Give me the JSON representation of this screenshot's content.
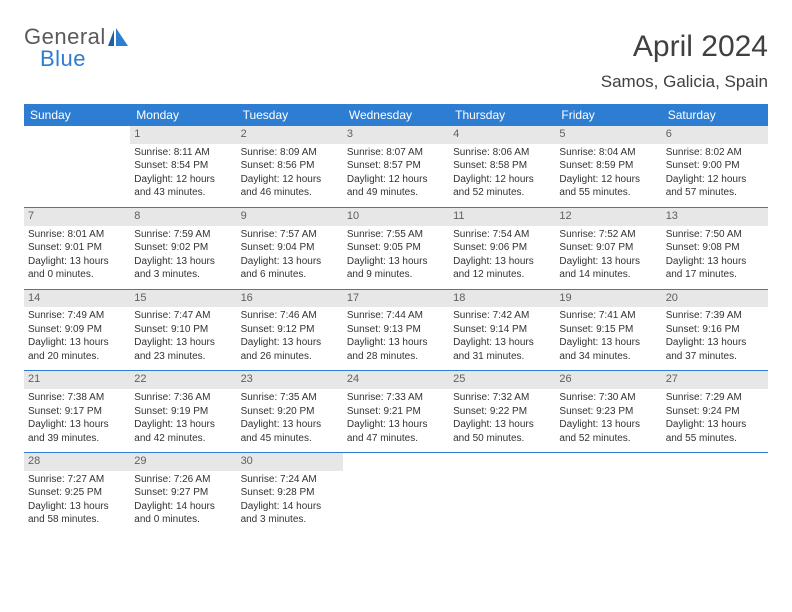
{
  "logo": {
    "main": "General",
    "sub": "Blue"
  },
  "title": "April 2024",
  "location": "Samos, Galicia, Spain",
  "colors": {
    "header_bg": "#2d7dd2",
    "header_text": "#ffffff",
    "daynum_bg": "#e7e7e7",
    "daynum_text": "#606060",
    "body_text": "#333333",
    "week_border": "#2d7dd2",
    "logo_main": "#5a5a5a",
    "logo_sub": "#2d7dd2",
    "title_color": "#404040",
    "page_bg": "#ffffff"
  },
  "day_headers": [
    "Sunday",
    "Monday",
    "Tuesday",
    "Wednesday",
    "Thursday",
    "Friday",
    "Saturday"
  ],
  "weeks": [
    [
      null,
      {
        "d": "1",
        "sr": "Sunrise: 8:11 AM",
        "ss": "Sunset: 8:54 PM",
        "dl1": "Daylight: 12 hours",
        "dl2": "and 43 minutes."
      },
      {
        "d": "2",
        "sr": "Sunrise: 8:09 AM",
        "ss": "Sunset: 8:56 PM",
        "dl1": "Daylight: 12 hours",
        "dl2": "and 46 minutes."
      },
      {
        "d": "3",
        "sr": "Sunrise: 8:07 AM",
        "ss": "Sunset: 8:57 PM",
        "dl1": "Daylight: 12 hours",
        "dl2": "and 49 minutes."
      },
      {
        "d": "4",
        "sr": "Sunrise: 8:06 AM",
        "ss": "Sunset: 8:58 PM",
        "dl1": "Daylight: 12 hours",
        "dl2": "and 52 minutes."
      },
      {
        "d": "5",
        "sr": "Sunrise: 8:04 AM",
        "ss": "Sunset: 8:59 PM",
        "dl1": "Daylight: 12 hours",
        "dl2": "and 55 minutes."
      },
      {
        "d": "6",
        "sr": "Sunrise: 8:02 AM",
        "ss": "Sunset: 9:00 PM",
        "dl1": "Daylight: 12 hours",
        "dl2": "and 57 minutes."
      }
    ],
    [
      {
        "d": "7",
        "sr": "Sunrise: 8:01 AM",
        "ss": "Sunset: 9:01 PM",
        "dl1": "Daylight: 13 hours",
        "dl2": "and 0 minutes."
      },
      {
        "d": "8",
        "sr": "Sunrise: 7:59 AM",
        "ss": "Sunset: 9:02 PM",
        "dl1": "Daylight: 13 hours",
        "dl2": "and 3 minutes."
      },
      {
        "d": "9",
        "sr": "Sunrise: 7:57 AM",
        "ss": "Sunset: 9:04 PM",
        "dl1": "Daylight: 13 hours",
        "dl2": "and 6 minutes."
      },
      {
        "d": "10",
        "sr": "Sunrise: 7:55 AM",
        "ss": "Sunset: 9:05 PM",
        "dl1": "Daylight: 13 hours",
        "dl2": "and 9 minutes."
      },
      {
        "d": "11",
        "sr": "Sunrise: 7:54 AM",
        "ss": "Sunset: 9:06 PM",
        "dl1": "Daylight: 13 hours",
        "dl2": "and 12 minutes."
      },
      {
        "d": "12",
        "sr": "Sunrise: 7:52 AM",
        "ss": "Sunset: 9:07 PM",
        "dl1": "Daylight: 13 hours",
        "dl2": "and 14 minutes."
      },
      {
        "d": "13",
        "sr": "Sunrise: 7:50 AM",
        "ss": "Sunset: 9:08 PM",
        "dl1": "Daylight: 13 hours",
        "dl2": "and 17 minutes."
      }
    ],
    [
      {
        "d": "14",
        "sr": "Sunrise: 7:49 AM",
        "ss": "Sunset: 9:09 PM",
        "dl1": "Daylight: 13 hours",
        "dl2": "and 20 minutes."
      },
      {
        "d": "15",
        "sr": "Sunrise: 7:47 AM",
        "ss": "Sunset: 9:10 PM",
        "dl1": "Daylight: 13 hours",
        "dl2": "and 23 minutes."
      },
      {
        "d": "16",
        "sr": "Sunrise: 7:46 AM",
        "ss": "Sunset: 9:12 PM",
        "dl1": "Daylight: 13 hours",
        "dl2": "and 26 minutes."
      },
      {
        "d": "17",
        "sr": "Sunrise: 7:44 AM",
        "ss": "Sunset: 9:13 PM",
        "dl1": "Daylight: 13 hours",
        "dl2": "and 28 minutes."
      },
      {
        "d": "18",
        "sr": "Sunrise: 7:42 AM",
        "ss": "Sunset: 9:14 PM",
        "dl1": "Daylight: 13 hours",
        "dl2": "and 31 minutes."
      },
      {
        "d": "19",
        "sr": "Sunrise: 7:41 AM",
        "ss": "Sunset: 9:15 PM",
        "dl1": "Daylight: 13 hours",
        "dl2": "and 34 minutes."
      },
      {
        "d": "20",
        "sr": "Sunrise: 7:39 AM",
        "ss": "Sunset: 9:16 PM",
        "dl1": "Daylight: 13 hours",
        "dl2": "and 37 minutes."
      }
    ],
    [
      {
        "d": "21",
        "sr": "Sunrise: 7:38 AM",
        "ss": "Sunset: 9:17 PM",
        "dl1": "Daylight: 13 hours",
        "dl2": "and 39 minutes."
      },
      {
        "d": "22",
        "sr": "Sunrise: 7:36 AM",
        "ss": "Sunset: 9:19 PM",
        "dl1": "Daylight: 13 hours",
        "dl2": "and 42 minutes."
      },
      {
        "d": "23",
        "sr": "Sunrise: 7:35 AM",
        "ss": "Sunset: 9:20 PM",
        "dl1": "Daylight: 13 hours",
        "dl2": "and 45 minutes."
      },
      {
        "d": "24",
        "sr": "Sunrise: 7:33 AM",
        "ss": "Sunset: 9:21 PM",
        "dl1": "Daylight: 13 hours",
        "dl2": "and 47 minutes."
      },
      {
        "d": "25",
        "sr": "Sunrise: 7:32 AM",
        "ss": "Sunset: 9:22 PM",
        "dl1": "Daylight: 13 hours",
        "dl2": "and 50 minutes."
      },
      {
        "d": "26",
        "sr": "Sunrise: 7:30 AM",
        "ss": "Sunset: 9:23 PM",
        "dl1": "Daylight: 13 hours",
        "dl2": "and 52 minutes."
      },
      {
        "d": "27",
        "sr": "Sunrise: 7:29 AM",
        "ss": "Sunset: 9:24 PM",
        "dl1": "Daylight: 13 hours",
        "dl2": "and 55 minutes."
      }
    ],
    [
      {
        "d": "28",
        "sr": "Sunrise: 7:27 AM",
        "ss": "Sunset: 9:25 PM",
        "dl1": "Daylight: 13 hours",
        "dl2": "and 58 minutes."
      },
      {
        "d": "29",
        "sr": "Sunrise: 7:26 AM",
        "ss": "Sunset: 9:27 PM",
        "dl1": "Daylight: 14 hours",
        "dl2": "and 0 minutes."
      },
      {
        "d": "30",
        "sr": "Sunrise: 7:24 AM",
        "ss": "Sunset: 9:28 PM",
        "dl1": "Daylight: 14 hours",
        "dl2": "and 3 minutes."
      },
      null,
      null,
      null,
      null
    ]
  ]
}
